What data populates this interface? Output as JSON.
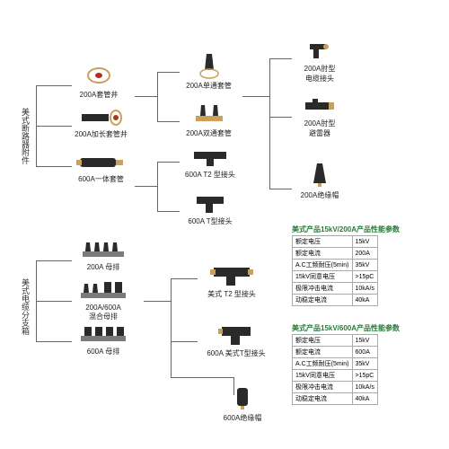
{
  "side_labels": {
    "top": "美式断路器附件",
    "bottom": "美式电缆分支箱"
  },
  "nodes": {
    "n1": "200A套管井",
    "n2": "200A加长套管井",
    "n3": "600A一体套管",
    "n4": "200A单通套管",
    "n5": "200A双通套管",
    "n6": "600A T2 型接头",
    "n7": "600A T型接头",
    "n8": "200A肘型\n电缆接头",
    "n9": "200A肘型\n避雷器",
    "n10": "200A绝缘帽",
    "n11": "200A 母排",
    "n12": "200A/600A\n混合母排",
    "n13": "600A 母排",
    "n14": "美式 T2 型接头",
    "n15": "600A 美式T型接头",
    "n16": "600A绝缘帽"
  },
  "table1": {
    "title": "美式产品15kV/200A产品性能参数",
    "rows": [
      [
        "额定电压",
        "15kV"
      ],
      [
        "额定电流",
        "200A"
      ],
      [
        "A.C工频耐压(5min)",
        "35kV"
      ],
      [
        "15kV同意电压",
        ">15pC"
      ],
      [
        "极限冲击电流",
        "10kA/s"
      ],
      [
        "动稳定电流",
        "40kA"
      ]
    ]
  },
  "table2": {
    "title": "美式产品15kV/600A产品性能参数",
    "rows": [
      [
        "额定电压",
        "15kV"
      ],
      [
        "额定电流",
        "600A"
      ],
      [
        "A.C工频耐压(5min)",
        "35kV"
      ],
      [
        "15kV同意电压",
        ">15pC"
      ],
      [
        "极限冲击电流",
        "10kA/s"
      ],
      [
        "动稳定电流",
        "40kA"
      ]
    ]
  },
  "colors": {
    "line": "#666666",
    "brass": "#c9a15a",
    "black": "#2a2a2a",
    "red": "#b03020",
    "gray": "#7a7a7a",
    "green_title": "#2a7a3a"
  }
}
